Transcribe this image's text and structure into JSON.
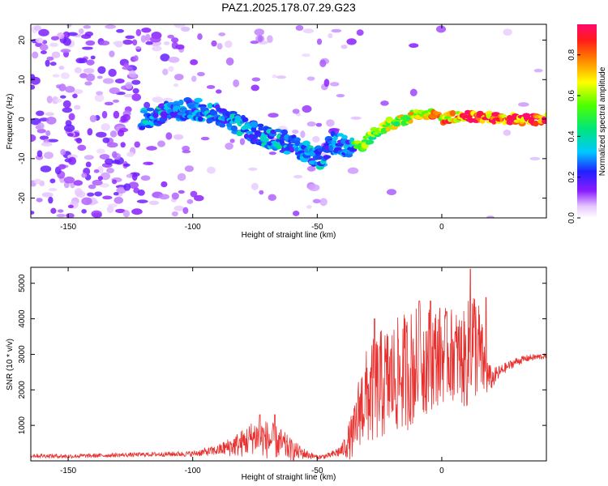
{
  "title": "PAZ1.2025.178.07.29.G23",
  "chart_data": [
    {
      "type": "heatmap",
      "name": "spectrogram",
      "xlabel": "Height of straight line (km)",
      "ylabel": "Frequency (Hz)",
      "xlim": [
        -165,
        42
      ],
      "ylim": [
        -25,
        24
      ],
      "xticks": [
        -150,
        -100,
        -50,
        0
      ],
      "yticks": [
        -20,
        -10,
        0,
        10,
        20
      ],
      "colorbar": {
        "label": "Normalized spectral amplitude",
        "range": [
          0,
          0.95
        ],
        "ticks": [
          0.0,
          0.2,
          0.4,
          0.6,
          0.8
        ]
      },
      "ridge": {
        "x": [
          -120,
          -110,
          -100,
          -92,
          -85,
          -78,
          -70,
          -62,
          -55,
          -48,
          -44,
          -40,
          -36,
          -32,
          -28,
          -24,
          -20,
          -15,
          -10,
          -5,
          0,
          5,
          10,
          15,
          20,
          30,
          42
        ],
        "y": [
          0.0,
          2.0,
          2.5,
          2.0,
          -0.5,
          -2.5,
          -4.5,
          -6.0,
          -8.0,
          -10.5,
          -6.0,
          -6.5,
          -7.0,
          -7.0,
          -4.0,
          -2.5,
          -1.0,
          0.0,
          1.0,
          1.5,
          0.0,
          0.5,
          1.0,
          0.5,
          0.5,
          0.0,
          0.0
        ]
      }
    },
    {
      "type": "line",
      "name": "snr",
      "xlabel": "Height of straight line (km)",
      "ylabel": "SNR (10 * v/v)",
      "xlim": [
        -165,
        42
      ],
      "ylim": [
        0,
        5450
      ],
      "xticks": [
        -150,
        -100,
        -50,
        0
      ],
      "yticks": [
        1000,
        2000,
        3000,
        4000,
        5000
      ],
      "color": "#e8302e",
      "envelope": {
        "x": [
          -165,
          -150,
          -120,
          -100,
          -90,
          -80,
          -75,
          -70,
          -65,
          -60,
          -55,
          -50,
          -45,
          -40,
          -35,
          -33,
          -30,
          -25,
          -20,
          -15,
          -10,
          -5,
          0,
          5,
          10,
          12,
          15,
          18,
          20,
          25,
          30,
          35,
          42
        ],
        "mean": [
          150,
          130,
          180,
          200,
          300,
          500,
          700,
          600,
          500,
          300,
          200,
          100,
          150,
          300,
          800,
          1500,
          1800,
          2100,
          2300,
          2500,
          2700,
          2900,
          3000,
          3000,
          2800,
          3500,
          3100,
          2400,
          2300,
          2600,
          2800,
          2900,
          2950
        ],
        "amp": [
          60,
          60,
          60,
          80,
          150,
          400,
          500,
          550,
          450,
          300,
          150,
          60,
          80,
          200,
          800,
          1100,
          1400,
          1600,
          1600,
          1700,
          1700,
          1500,
          1400,
          1300,
          1400,
          1800,
          1400,
          600,
          300,
          150,
          120,
          100,
          80
        ]
      },
      "peaks": [
        {
          "x": 11.5,
          "y": 5400
        },
        {
          "x": 17.8,
          "y": 4600
        },
        {
          "x": -9.0,
          "y": 4500
        },
        {
          "x": -4.5,
          "y": 4500
        },
        {
          "x": 2.0,
          "y": 4200
        },
        {
          "x": -27.0,
          "y": 4000
        },
        {
          "x": -73.0,
          "y": 1300
        },
        {
          "x": -67.0,
          "y": 1300
        }
      ]
    }
  ]
}
